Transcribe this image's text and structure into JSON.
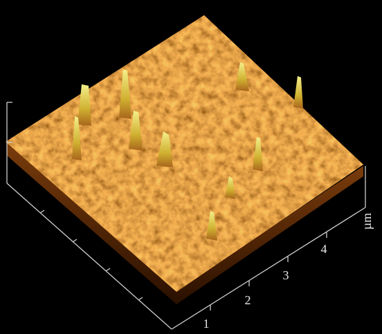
{
  "axis": {
    "tick_labels": [
      "1",
      "2",
      "3",
      "4"
    ],
    "unit": "µm"
  }
}
